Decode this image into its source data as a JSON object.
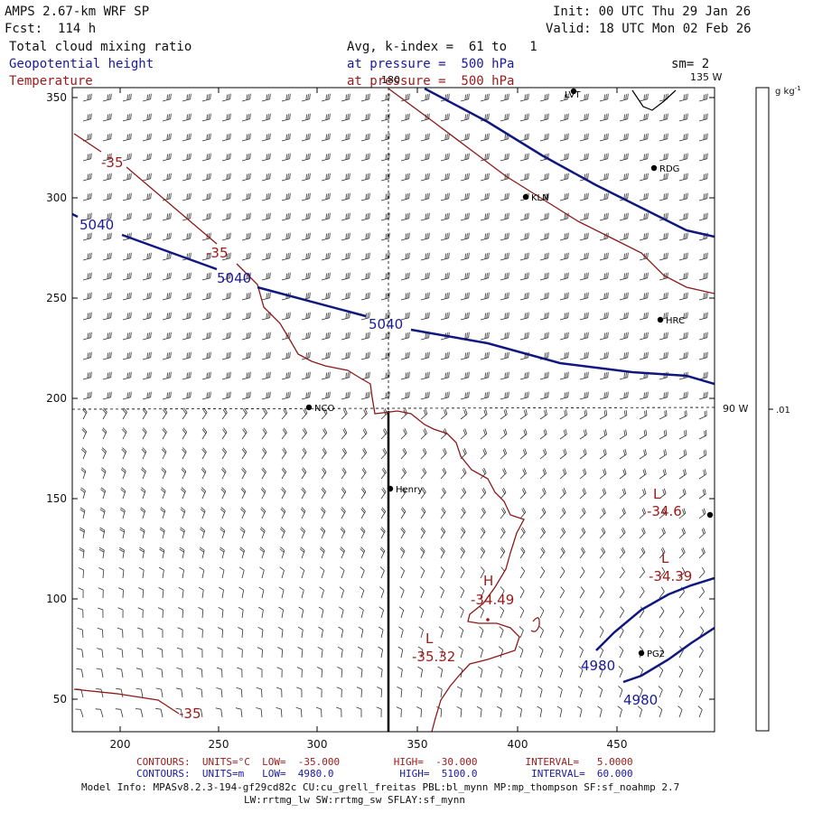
{
  "header": {
    "model": "AMPS 2.67-km WRF SP",
    "forecast": "Fcst:  114 h",
    "init": "Init: 00 UTC Thu 29 Jan 26",
    "valid": "Valid: 18 UTC Mon 02 Feb 26",
    "field1": "Total cloud mixing ratio",
    "field2": "Geopotential height",
    "field3": "Temperature",
    "avg": "Avg, k-index =  61 to   1",
    "pressure1": "at pressure =  500 hPa",
    "pressure2": "at pressure =  500 hPa",
    "sm": "sm= 2"
  },
  "map_labels": {
    "lon180": "180",
    "lon135": "135 W",
    "lon90": "90 W",
    "colorbar_unit": "g kg",
    "colorbar_unit_exp": "-1",
    "colorbar_value": ".01"
  },
  "axes": {
    "xticks": [
      "200",
      "250",
      "300",
      "350",
      "400",
      "450"
    ],
    "yticks": [
      "350",
      "300",
      "250",
      "200",
      "150",
      "100",
      "50"
    ]
  },
  "stations": [
    {
      "name": "LVT"
    },
    {
      "name": "RDG"
    },
    {
      "name": "KLN"
    },
    {
      "name": "HRC"
    },
    {
      "name": "NCO"
    },
    {
      "name": "Henry"
    },
    {
      "name": "PG2"
    }
  ],
  "contour_labels": {
    "height": [
      "5040",
      "5040",
      "5040",
      "4980",
      "4980"
    ],
    "temperature": [
      "-35",
      "-35",
      "-35"
    ],
    "extrema": [
      {
        "letter": "L",
        "value": "-34.6"
      },
      {
        "letter": "L",
        "value": "-34.39"
      },
      {
        "letter": "H",
        "value": "-34.49"
      },
      {
        "letter": "L",
        "value": "-35.32"
      }
    ]
  },
  "footer": {
    "line1_temp": "CONTOURS:  UNITS=°C  LOW=  -35.000         HIGH=  -30.000        INTERVAL=   5.0000",
    "line2_height": "CONTOURS:  UNITS=m   LOW=  4980.0           HIGH=  5100.0         INTERVAL=  60.000",
    "line3": "Model Info: MPASv8.2.3-194-gf29cd82c CU:cu_grell_freitas PBL:bl_mynn MP:mp_thompson SF:sf_noahmp 2.7",
    "line4": "LW:rrtmg_lw SW:rrtmg_sw SFLAY:sf_mynn"
  }
}
